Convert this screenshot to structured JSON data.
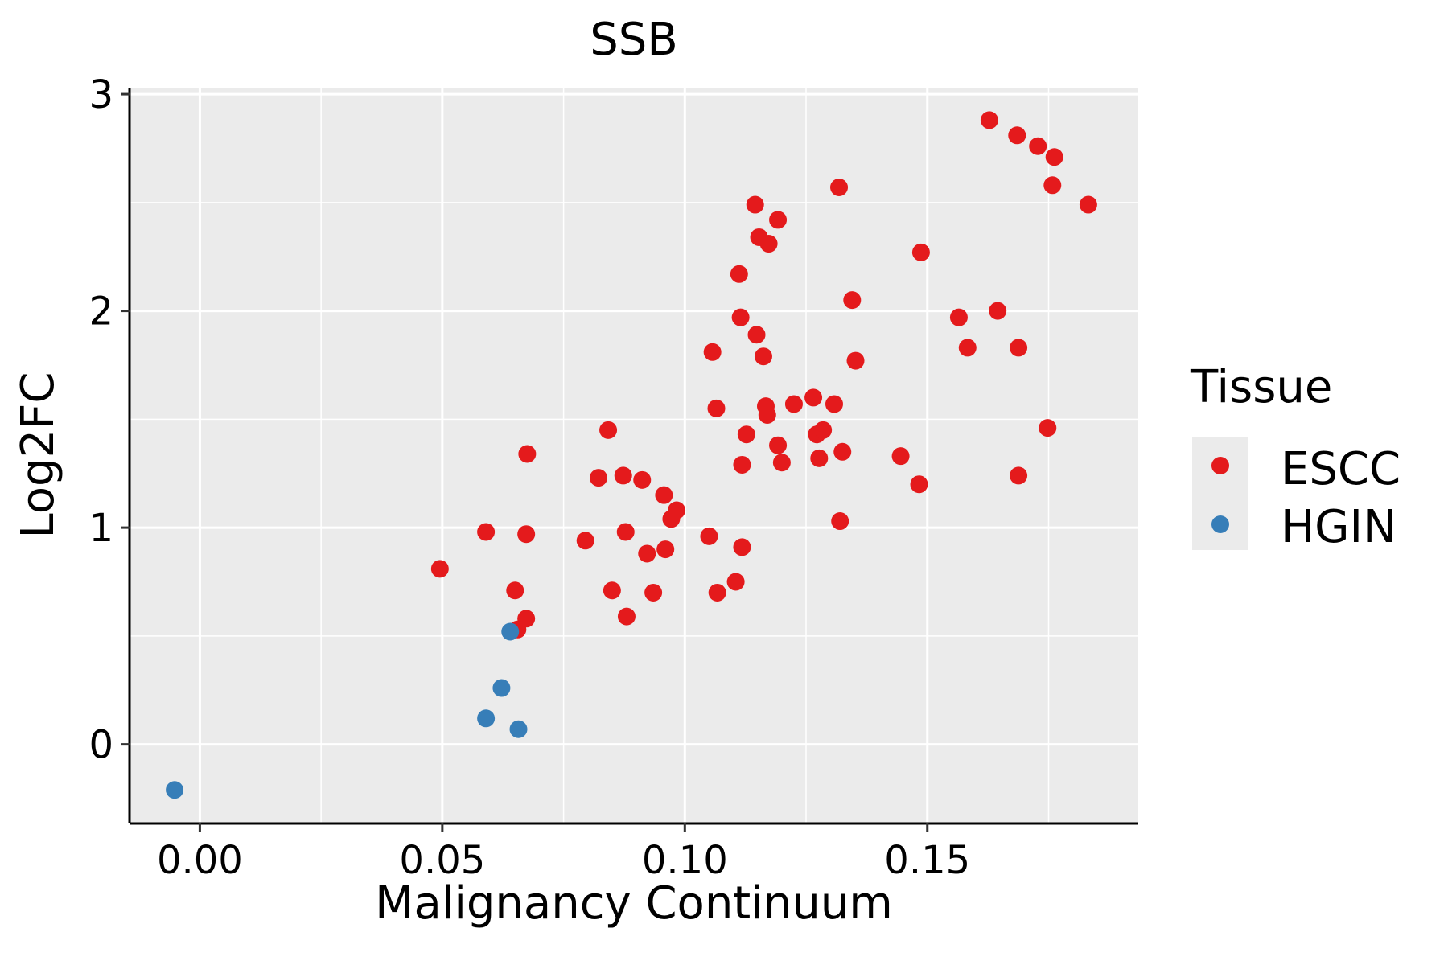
{
  "chart_data": {
    "type": "scatter",
    "title": "SSB",
    "xlabel": "Malignancy Continuum",
    "ylabel": "Log2FC",
    "xlim": [
      -0.0145,
      0.1935
    ],
    "ylim": [
      -0.365,
      3.03
    ],
    "x_ticks": [
      0.0,
      0.05,
      0.1,
      0.15
    ],
    "x_tick_labels": [
      "0.00",
      "0.05",
      "0.10",
      "0.15"
    ],
    "y_ticks": [
      0,
      1,
      2,
      3
    ],
    "y_tick_labels": [
      "0",
      "1",
      "2",
      "3"
    ],
    "grid": true,
    "legend": {
      "title": "Tissue",
      "position": "right"
    },
    "series": [
      {
        "name": "ESCC",
        "color": "#E41A1C",
        "points": [
          [
            0.0495,
            0.81
          ],
          [
            0.059,
            0.98
          ],
          [
            0.065,
            0.71
          ],
          [
            0.0655,
            0.53
          ],
          [
            0.0673,
            0.58
          ],
          [
            0.0673,
            0.97
          ],
          [
            0.0675,
            1.34
          ],
          [
            0.0795,
            0.94
          ],
          [
            0.0822,
            1.23
          ],
          [
            0.0842,
            1.45
          ],
          [
            0.085,
            0.71
          ],
          [
            0.0873,
            1.24
          ],
          [
            0.0878,
            0.98
          ],
          [
            0.088,
            0.59
          ],
          [
            0.0912,
            1.22
          ],
          [
            0.0922,
            0.88
          ],
          [
            0.0935,
            0.7
          ],
          [
            0.0957,
            1.15
          ],
          [
            0.096,
            0.9
          ],
          [
            0.0972,
            1.04
          ],
          [
            0.0983,
            1.08
          ],
          [
            0.105,
            0.96
          ],
          [
            0.1057,
            1.81
          ],
          [
            0.1065,
            1.55
          ],
          [
            0.1067,
            0.7
          ],
          [
            0.1105,
            0.75
          ],
          [
            0.1112,
            2.17
          ],
          [
            0.1115,
            1.97
          ],
          [
            0.1118,
            0.91
          ],
          [
            0.1118,
            1.29
          ],
          [
            0.1127,
            1.43
          ],
          [
            0.1145,
            2.49
          ],
          [
            0.1148,
            1.89
          ],
          [
            0.1153,
            2.34
          ],
          [
            0.1162,
            1.79
          ],
          [
            0.1167,
            1.56
          ],
          [
            0.117,
            1.52
          ],
          [
            0.1173,
            2.31
          ],
          [
            0.1192,
            2.42
          ],
          [
            0.1192,
            1.38
          ],
          [
            0.12,
            1.3
          ],
          [
            0.1225,
            1.57
          ],
          [
            0.1265,
            1.6
          ],
          [
            0.1272,
            1.43
          ],
          [
            0.1277,
            1.32
          ],
          [
            0.1285,
            1.45
          ],
          [
            0.1308,
            1.57
          ],
          [
            0.1318,
            2.57
          ],
          [
            0.132,
            1.03
          ],
          [
            0.1325,
            1.35
          ],
          [
            0.1345,
            2.05
          ],
          [
            0.1352,
            1.77
          ],
          [
            0.1445,
            1.33
          ],
          [
            0.1483,
            1.2
          ],
          [
            0.1487,
            2.27
          ],
          [
            0.1565,
            1.97
          ],
          [
            0.1583,
            1.83
          ],
          [
            0.1628,
            2.88
          ],
          [
            0.1645,
            2.0
          ],
          [
            0.1685,
            2.81
          ],
          [
            0.1688,
            1.83
          ],
          [
            0.1688,
            1.24
          ],
          [
            0.1728,
            2.76
          ],
          [
            0.1748,
            1.46
          ],
          [
            0.1758,
            2.58
          ],
          [
            0.1762,
            2.71
          ],
          [
            0.1832,
            2.49
          ]
        ]
      },
      {
        "name": "HGIN",
        "color": "#377EB8",
        "points": [
          [
            -0.0052,
            -0.21
          ],
          [
            0.059,
            0.12
          ],
          [
            0.0622,
            0.26
          ],
          [
            0.064,
            0.52
          ],
          [
            0.0657,
            0.07
          ]
        ]
      }
    ]
  }
}
